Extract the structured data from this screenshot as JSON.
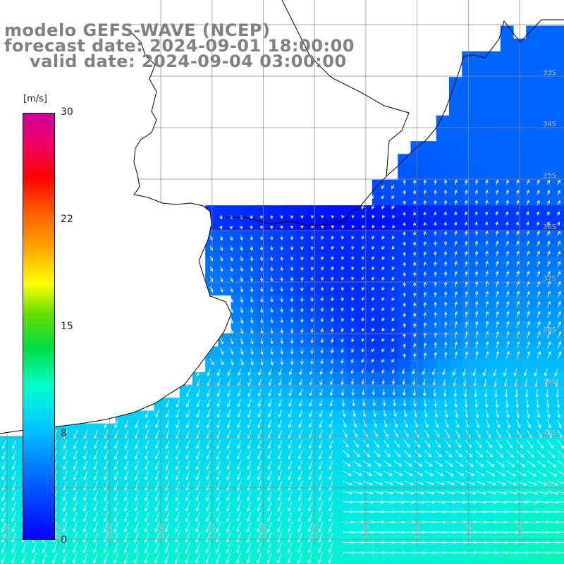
{
  "title": {
    "line1": "modelo GEFS-WAVE (NCEP)",
    "line2": "forecast date: 2024-09-01 18:00:00",
    "line3": "valid date: 2024-09-04 03:00:00"
  },
  "colorbar": {
    "unit": "[m/s]",
    "ticks": [
      {
        "label": "30",
        "value": 30
      },
      {
        "label": "22",
        "value": 22
      },
      {
        "label": "15",
        "value": 15
      },
      {
        "label": "8",
        "value": 8
      },
      {
        "label": "0",
        "value": 0
      }
    ]
  },
  "map": {
    "lon_labels": [
      "61W",
      "60W",
      "59W",
      "58W",
      "57W",
      "56W",
      "55W",
      "54W",
      "53W",
      "52W",
      "51W"
    ],
    "lat_labels": [
      "33S",
      "34S",
      "35S",
      "36S",
      "37S",
      "38S",
      "39S",
      "40S",
      "41S"
    ],
    "colors": {
      "land": "#ffffff",
      "coast": "#000000",
      "grid": "#888888",
      "arrow": "#ffffff",
      "weak": "#0022ff",
      "strong": "#00ffbb"
    }
  }
}
